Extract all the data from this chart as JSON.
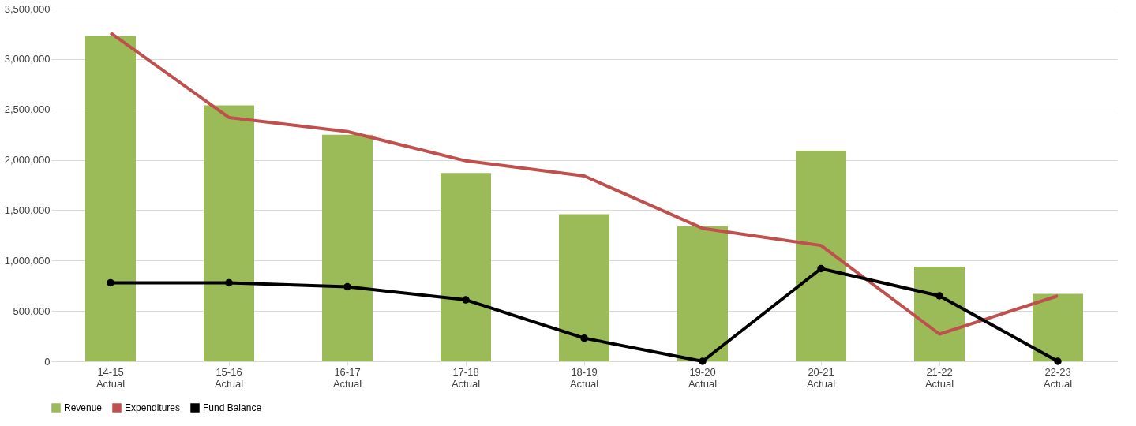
{
  "chart_data": {
    "type": "bar",
    "categories": [
      "14-15\nActual",
      "15-16\nActual",
      "16-17\nActual",
      "17-18\nActual",
      "18-19\nActual",
      "19-20\nActual",
      "20-21\nActual",
      "21-22\nActual",
      "22-23\nActual"
    ],
    "series": [
      {
        "name": "Revenue",
        "color": "#9bbb59",
        "values": [
          3230000,
          2540000,
          2250000,
          1870000,
          1460000,
          1340000,
          2090000,
          940000,
          670000
        ]
      },
      {
        "name": "Expenditures",
        "type": "line",
        "marker": "none",
        "color": "#c0504d",
        "values": [
          3260000,
          2420000,
          2280000,
          1990000,
          1840000,
          1320000,
          1150000,
          270000,
          650000
        ]
      },
      {
        "name": "Fund Balance",
        "type": "line",
        "marker": "circle",
        "color": "#000000",
        "values": [
          780000,
          780000,
          740000,
          610000,
          230000,
          0,
          920000,
          650000,
          0
        ]
      }
    ],
    "ylim": [
      0,
      3500000
    ],
    "yticks": [
      0,
      {
        "value": 500000,
        "label": "500,000"
      },
      {
        "value": 1000000,
        "label": "1,000,000"
      },
      {
        "value": 1500000,
        "label": "1,500,000"
      },
      {
        "value": 2000000,
        "label": "2,000,000"
      },
      {
        "value": 2500000,
        "label": "2,500,000"
      },
      {
        "value": 3000000,
        "label": "3,000,000"
      },
      {
        "value": 3500000,
        "label": "3,500,000"
      }
    ],
    "grid": "y",
    "legend": "bottom"
  }
}
